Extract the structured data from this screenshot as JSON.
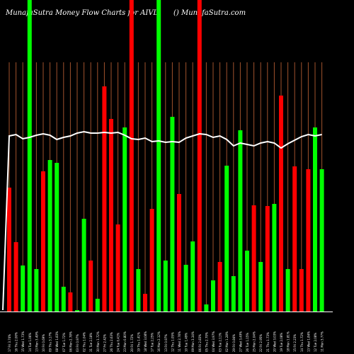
{
  "header": {
    "title": "MunafaSutra  Money Flow  Charts for AIVL",
    "brand": "() MunafaSutra.com"
  },
  "colors": {
    "background": "#000000",
    "up": "#00ff00",
    "down": "#ff0000",
    "line": "#ffffff",
    "grid": "#a0522d",
    "baseline": "#ffffff"
  },
  "chart_data": {
    "type": "bar",
    "title": "MunafaSutra  Money Flow  Charts for AIVL",
    "ylim": [
      0,
      440
    ],
    "grid": "vertical",
    "categories": [
      "Fri 17 Jan 2025",
      "Thu 16 Jan 2025",
      "Wed 15 Jan 2025",
      "Tue 14 Jan 2025",
      "Mon 13 Jan 2025",
      "Fri 10 Jan 2025",
      "Thu 09 Jan 2025",
      "Wed 08 Jan 2025",
      "Tue 07 Jan 2025",
      "Mon 06 Jan 2025",
      "Fri 03 Jan 2025",
      "Thu 02 Jan 2025",
      "Tue 31 Dec 2024",
      "Mon 30 Dec 2024",
      "Fri 27 Dec 2024",
      "Thu 26 Dec 2024",
      "Tue 24 Dec 2024",
      "Mon 23 Dec 2024",
      "Fri 20 Dec 2024",
      "Thu 19 Dec 2024",
      "Wed 18 Dec 2024",
      "Tue 17 Dec 2024",
      "Mon 16 Dec 2024",
      "Fri 13 Dec 2024",
      "Thu 12 Dec 2024",
      "Wed 11 Dec 2024",
      "Tue 10 Dec 2024",
      "Mon 09 Dec 2024",
      "Fri 06 Dec 2024",
      "Thu 05 Dec 2024",
      "Wed 04 Dec 2024",
      "Tue 03 Dec 2024",
      "Mon 02 Dec 2024",
      "Fri 29 Nov 2024",
      "Wed 27 Nov 2024",
      "Tue 26 Nov 2024",
      "Mon 25 Nov 2024",
      "Fri 22 Nov 2024",
      "Thu 21 Nov 2024",
      "Wed 20 Nov 2024",
      "Tue 19 Nov 2024",
      "Mon 18 Nov 2024",
      "Fri 15 Nov 2024",
      "Thu 14 Nov 2024",
      "Wed 13 Nov 2024",
      "Tue 12 Nov 2024",
      "Mon 11 Nov 2024"
    ],
    "tick_labels": [
      "17 Fri 3.74%",
      "16 Thu 2.00%",
      "15 Wed 1.73%",
      "14 Tue 1.06%",
      "13 Mon 3.49%",
      "10 Fri 0.69%",
      "09 Thu 3.17%",
      "08 Wed 1.83%",
      "07 Tue 1.72%",
      "06 Mon 2.78%",
      "03 Fri 0.97%",
      "02 Thu 1.04%",
      "31 Tue 2.18%",
      "30 Mon 1.72%",
      "27 Fri 2.42%",
      "26 Thu 2.63%",
      "24 Tue 0.41%",
      "23 Mon 0.80%",
      "20 Fri 1.72%",
      "19 Thu 1.41%",
      "18 Wed 3.08%",
      "17 Tue 2.25%",
      "16 Mon 2.12%",
      "13 Fri 0.97%",
      "12 Thu 1.05%",
      "11 Wed 2.76%",
      "10 Tue 1.49%",
      "09 Mon 3.34%",
      "06 Fri 2.83%",
      "05 Thu 2.70%",
      "04 Wed 3.97%",
      "03 Tue 2.11%",
      "02 Mon 1.28%",
      "29 Fri 0.84%",
      "27 Wed 3.49%",
      "26 Tue 1.15%",
      "25 Mon 2.04%",
      "22 Fri 2.95%",
      "21 Thu 1.73%",
      "20 Wed 3.03%",
      "19 Tue 2.08%",
      "18 Mon 1.81%",
      "15 Fri 2.23%",
      "14 Thu 1.72%",
      "13 Wed 1.84%",
      "12 Tue 2.08%",
      "11 Mon 3.77%"
    ],
    "values": [
      175,
      98,
      65,
      440,
      60,
      198,
      214,
      210,
      35,
      27,
      2,
      131,
      72,
      18,
      318,
      272,
      123,
      260,
      440,
      60,
      25,
      145,
      440,
      72,
      275,
      166,
      66,
      99,
      440,
      10,
      44,
      70,
      206,
      50,
      256,
      86,
      150,
      70,
      149,
      152,
      305,
      60,
      205,
      60,
      201,
      260,
      201
    ],
    "directions": [
      "down",
      "down",
      "up",
      "up",
      "up",
      "down",
      "up",
      "up",
      "up",
      "down",
      "up",
      "up",
      "down",
      "up",
      "down",
      "down",
      "down",
      "up",
      "down",
      "up",
      "down",
      "down",
      "up",
      "up",
      "up",
      "down",
      "up",
      "up",
      "down",
      "up",
      "up",
      "down",
      "up",
      "up",
      "up",
      "up",
      "down",
      "up",
      "down",
      "up",
      "down",
      "up",
      "down",
      "down",
      "down",
      "up",
      "up"
    ],
    "line": [
      248,
      250,
      244,
      246,
      249,
      251,
      249,
      243,
      246,
      248,
      252,
      254,
      252,
      252,
      253,
      252,
      253,
      249,
      244,
      243,
      245,
      240,
      241,
      239,
      240,
      239,
      245,
      248,
      251,
      250,
      246,
      248,
      243,
      234,
      238,
      236,
      234,
      238,
      240,
      238,
      231,
      237,
      242,
      247,
      250,
      248,
      250
    ]
  }
}
